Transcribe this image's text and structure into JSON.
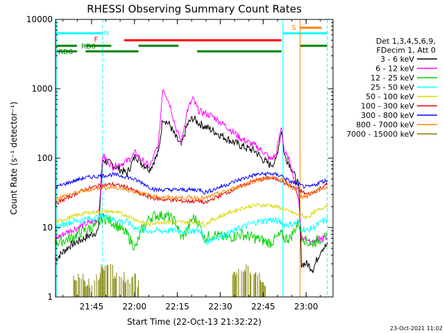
{
  "chart_data": {
    "type": "line",
    "title": "RHESSI Observing Summary Count Rates",
    "xlabel": "Start Time (22-Oct-13 21:32:22)",
    "ylabel": "Count Rate (s⁻¹ detector⁻¹)",
    "x_unit": "minutes after 21:32:22",
    "xlim": [
      0,
      97
    ],
    "ylim": [
      1,
      10000
    ],
    "yscale": "log",
    "x_ticks": [
      {
        "x": 12.6,
        "label": "21:45"
      },
      {
        "x": 27.6,
        "label": "22:00"
      },
      {
        "x": 42.6,
        "label": "22:15"
      },
      {
        "x": 57.6,
        "label": "22:30"
      },
      {
        "x": 72.6,
        "label": "22:45"
      },
      {
        "x": 87.6,
        "label": "23:00"
      }
    ],
    "y_ticks": [
      {
        "y": 1,
        "label": "1"
      },
      {
        "y": 10,
        "label": "10"
      },
      {
        "y": 100,
        "label": "100"
      },
      {
        "y": 1000,
        "label": "1000"
      },
      {
        "y": 10000,
        "label": "10000"
      }
    ],
    "legend": {
      "placement": "right",
      "header": [
        "Det 1,3,4,5,6,9,",
        "FDecim 1, Att 0"
      ]
    },
    "footer_date": "23-Oct-2021 11:02",
    "series": [
      {
        "name": "3 - 6 keV",
        "color": "#000000",
        "x": [
          0,
          5,
          10,
          15,
          16.5,
          20,
          25,
          28,
          30,
          33,
          36,
          37.5,
          40,
          42,
          44,
          46,
          48,
          50,
          55,
          60,
          65,
          70,
          72,
          74,
          75,
          77,
          79,
          80,
          82,
          85,
          86,
          88,
          90,
          93,
          95
        ],
        "y": [
          3.5,
          5.5,
          7,
          9,
          95,
          80,
          60,
          110,
          85,
          70,
          120,
          380,
          300,
          200,
          150,
          300,
          380,
          320,
          250,
          190,
          150,
          125,
          100,
          85,
          80,
          90,
          260,
          110,
          80,
          40,
          3,
          3,
          2.5,
          5,
          5.5
        ]
      },
      {
        "name": "6 - 12 keV",
        "color": "#ff00ff",
        "x": [
          0,
          5,
          10,
          15,
          16.5,
          20,
          25,
          28,
          30,
          33,
          36,
          37.5,
          40,
          42,
          44,
          46,
          48,
          50,
          55,
          60,
          65,
          70,
          72,
          74,
          75,
          77,
          79,
          80,
          82,
          85,
          86,
          88,
          90,
          93,
          95
        ],
        "y": [
          7,
          9,
          11,
          13,
          110,
          75,
          90,
          120,
          95,
          75,
          160,
          1050,
          600,
          280,
          170,
          480,
          720,
          480,
          400,
          280,
          190,
          150,
          130,
          110,
          95,
          110,
          290,
          120,
          90,
          25,
          7,
          7,
          6,
          7,
          7
        ]
      },
      {
        "name": "12 - 25 keV",
        "color": "#00d000",
        "x": [
          0,
          5,
          10,
          15,
          16.5,
          20,
          25,
          28,
          30,
          33,
          35,
          38,
          40,
          42,
          44,
          46,
          48,
          50,
          52,
          55,
          60,
          65,
          70,
          75,
          79,
          80,
          82,
          85,
          86,
          88,
          90,
          93,
          95
        ],
        "y": [
          6,
          7,
          9,
          11,
          14,
          12,
          8,
          5,
          9,
          14,
          15,
          15,
          14,
          12,
          7,
          9,
          14,
          12,
          7,
          8,
          7,
          8,
          7,
          6,
          8,
          7,
          7,
          12,
          8,
          6,
          6,
          7,
          7
        ]
      },
      {
        "name": "25 - 50 keV",
        "color": "#00ffff",
        "x": [
          0,
          5,
          10,
          15,
          16.5,
          20,
          25,
          28,
          30,
          33,
          36,
          38,
          40,
          44,
          48,
          51,
          52,
          55,
          60,
          65,
          70,
          75,
          79,
          80,
          82,
          85,
          86,
          88,
          90,
          93,
          95
        ],
        "y": [
          10,
          12,
          13,
          14,
          15,
          13,
          12,
          10,
          9,
          9,
          9,
          9,
          9,
          9,
          9,
          9,
          6,
          7,
          8,
          10,
          12,
          13,
          12,
          11,
          11,
          12,
          10,
          9,
          10,
          12,
          13
        ]
      },
      {
        "name": "50 - 100 keV",
        "color": "#d8d800",
        "x": [
          0,
          5,
          10,
          15,
          20,
          25,
          30,
          33,
          35,
          40,
          45,
          50,
          51,
          52,
          55,
          60,
          65,
          70,
          75,
          79,
          80,
          82,
          85,
          86,
          88,
          90,
          93,
          95
        ],
        "y": [
          12,
          14,
          16,
          17,
          17,
          15,
          12,
          11,
          12,
          12,
          12,
          12,
          12,
          11,
          13,
          16,
          19,
          21,
          21,
          19,
          18,
          17,
          15,
          15,
          14,
          16,
          19,
          21
        ]
      },
      {
        "name": "100 - 300 keV",
        "color": "#e00000",
        "x": [
          0,
          5,
          10,
          15,
          20,
          25,
          30,
          35,
          40,
          45,
          50,
          51,
          52,
          55,
          60,
          65,
          70,
          75,
          79,
          80,
          82,
          85,
          86,
          88,
          90,
          93,
          95
        ],
        "y": [
          22,
          28,
          35,
          40,
          42,
          38,
          30,
          26,
          25,
          24,
          24,
          24,
          22,
          26,
          32,
          40,
          48,
          52,
          48,
          44,
          40,
          35,
          33,
          30,
          32,
          38,
          42
        ]
      },
      {
        "name": "300 - 800 keV",
        "color": "#0000ff",
        "x": [
          0,
          5,
          10,
          15,
          20,
          25,
          30,
          33,
          35,
          40,
          45,
          50,
          51,
          52,
          55,
          60,
          65,
          70,
          75,
          79,
          80,
          82,
          85,
          86,
          88,
          90,
          93,
          95
        ],
        "y": [
          38,
          45,
          52,
          55,
          58,
          54,
          45,
          38,
          35,
          35,
          35,
          35,
          35,
          32,
          35,
          42,
          50,
          58,
          60,
          56,
          52,
          46,
          42,
          40,
          38,
          40,
          46,
          48
        ]
      },
      {
        "name": "800 - 7000 keV",
        "color": "#ff8000",
        "x": [
          0,
          5,
          10,
          15,
          20,
          25,
          30,
          35,
          40,
          45,
          50,
          51,
          52,
          55,
          60,
          65,
          70,
          75,
          79,
          80,
          82,
          85,
          86,
          88,
          90,
          93,
          95
        ],
        "y": [
          26,
          30,
          34,
          37,
          38,
          35,
          31,
          28,
          27,
          27,
          27,
          27,
          26,
          29,
          34,
          40,
          48,
          52,
          50,
          46,
          40,
          30,
          28,
          28,
          32,
          36,
          38
        ]
      },
      {
        "name": "7000 - 15000 keV",
        "color": "#808000",
        "x": [
          6,
          8,
          10,
          14,
          16,
          18,
          20,
          22,
          24,
          26,
          28,
          29,
          62,
          64,
          66,
          68,
          70,
          72,
          74
        ],
        "y": [
          2,
          2,
          1.6,
          2,
          2.6,
          2.6,
          2,
          2,
          1.6,
          2,
          1.6,
          1.6,
          2,
          2.6,
          2.6,
          2,
          2,
          1.6,
          2
        ]
      }
    ],
    "annotations": [
      {
        "label": "N",
        "color": "#00ffff"
      },
      {
        "label": "F",
        "color": "#ff0000"
      },
      {
        "label": "RD0",
        "color": "#008000"
      },
      {
        "label": "RD6",
        "color": "#008000"
      },
      {
        "label": "S",
        "color": "#ff8000"
      }
    ]
  }
}
